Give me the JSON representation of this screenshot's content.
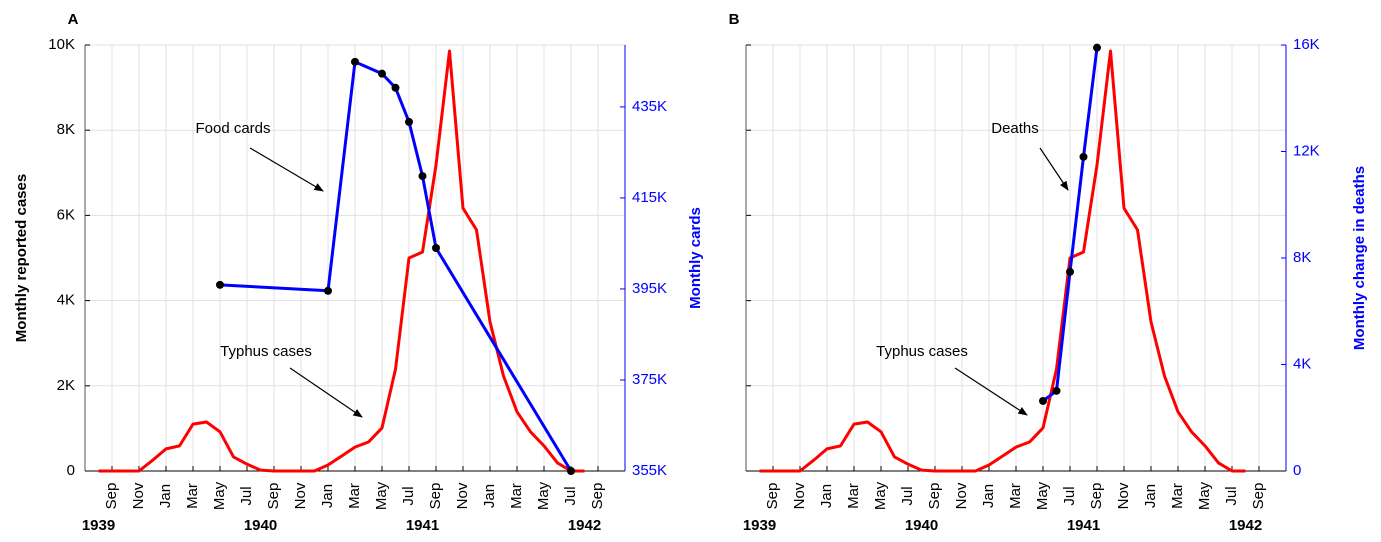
{
  "chart_data": [
    {
      "type": "line",
      "label": "A",
      "y_label": "Monthly reported cases",
      "y2_label": "Monthly cards",
      "y2_color": "#0000ff",
      "xlim": [
        "1939-07",
        "1942-11"
      ],
      "xticks": [
        {
          "value": "1939-09",
          "label": "Sep"
        },
        {
          "value": "1939-11",
          "label": "Nov"
        },
        {
          "value": "1940-01",
          "label": "Jan"
        },
        {
          "value": "1940-03",
          "label": "Mar"
        },
        {
          "value": "1940-05",
          "label": "May"
        },
        {
          "value": "1940-07",
          "label": "Jul"
        },
        {
          "value": "1940-09",
          "label": "Sep"
        },
        {
          "value": "1940-11",
          "label": "Nov"
        },
        {
          "value": "1941-01",
          "label": "Jan"
        },
        {
          "value": "1941-03",
          "label": "Mar"
        },
        {
          "value": "1941-05",
          "label": "May"
        },
        {
          "value": "1941-07",
          "label": "Jul"
        },
        {
          "value": "1941-09",
          "label": "Sep"
        },
        {
          "value": "1941-11",
          "label": "Nov"
        },
        {
          "value": "1942-01",
          "label": "Jan"
        },
        {
          "value": "1942-03",
          "label": "Mar"
        },
        {
          "value": "1942-05",
          "label": "May"
        },
        {
          "value": "1942-07",
          "label": "Jul"
        },
        {
          "value": "1942-09",
          "label": "Sep"
        }
      ],
      "year_labels": [
        "1939",
        "1940",
        "1941",
        "1942"
      ],
      "ylim": [
        0,
        10000
      ],
      "yticks": [
        0,
        {
          "value": 2000,
          "label": "2K"
        },
        {
          "value": 4000,
          "label": "4K"
        },
        {
          "value": 6000,
          "label": "6K"
        },
        {
          "value": 8000,
          "label": "8K"
        },
        {
          "value": 10000,
          "label": "10K"
        }
      ],
      "ytick_labels": true,
      "y2lim": [
        355000,
        448600
      ],
      "y2ticks": [
        {
          "value": 355000,
          "label": "355K"
        },
        {
          "value": 375000,
          "label": "375K"
        },
        {
          "value": 395000,
          "label": "395K"
        },
        {
          "value": 415000,
          "label": "415K"
        },
        {
          "value": 435000,
          "label": "435K"
        }
      ],
      "grid": true,
      "series": [
        {
          "name": "Typhus cases",
          "color": "#ff0000",
          "markers": false,
          "x": [
            "1939-08",
            "1939-09",
            "1939-10",
            "1939-11",
            "1939-12",
            "1940-01",
            "1940-02",
            "1940-03",
            "1940-04",
            "1940-05",
            "1940-06",
            "1940-07",
            "1940-08",
            "1940-09",
            "1940-10",
            "1940-11",
            "1940-12",
            "1941-01",
            "1941-02",
            "1941-03",
            "1941-04",
            "1941-05",
            "1941-06",
            "1941-07",
            "1941-08",
            "1941-09",
            "1941-10",
            "1941-11",
            "1941-12",
            "1942-01",
            "1942-02",
            "1942-03",
            "1942-04",
            "1942-05",
            "1942-06",
            "1942-07",
            "1942-08"
          ],
          "values": [
            0,
            0,
            0,
            0,
            250,
            520,
            590,
            1100,
            1150,
            920,
            330,
            160,
            20,
            0,
            0,
            0,
            0,
            140,
            350,
            560,
            680,
            1010,
            2390,
            5000,
            5140,
            7180,
            9860,
            6170,
            5660,
            3500,
            2230,
            1390,
            920,
            590,
            190,
            0,
            0
          ]
        },
        {
          "name": "Food cards",
          "color": "#0000ff",
          "axis": "y2",
          "markers": true,
          "x": [
            "1940-05",
            "1941-01",
            "1941-03",
            "1941-05",
            "1941-06",
            "1941-07",
            "1941-08",
            "1941-09",
            "1942-07"
          ],
          "values": [
            395900,
            394600,
            444900,
            442300,
            439200,
            431700,
            419800,
            404000,
            355000
          ]
        }
      ]
    },
    {
      "type": "line",
      "label": "B",
      "y2_label": "Monthly change in deaths",
      "y2_color": "#0000ff",
      "xlim": [
        "1939-07",
        "1942-11"
      ],
      "xticks": [
        {
          "value": "1939-09",
          "label": "Sep"
        },
        {
          "value": "1939-11",
          "label": "Nov"
        },
        {
          "value": "1940-01",
          "label": "Jan"
        },
        {
          "value": "1940-03",
          "label": "Mar"
        },
        {
          "value": "1940-05",
          "label": "May"
        },
        {
          "value": "1940-07",
          "label": "Jul"
        },
        {
          "value": "1940-09",
          "label": "Sep"
        },
        {
          "value": "1940-11",
          "label": "Nov"
        },
        {
          "value": "1941-01",
          "label": "Jan"
        },
        {
          "value": "1941-03",
          "label": "Mar"
        },
        {
          "value": "1941-05",
          "label": "May"
        },
        {
          "value": "1941-07",
          "label": "Jul"
        },
        {
          "value": "1941-09",
          "label": "Sep"
        },
        {
          "value": "1941-11",
          "label": "Nov"
        },
        {
          "value": "1942-01",
          "label": "Jan"
        },
        {
          "value": "1942-03",
          "label": "Mar"
        },
        {
          "value": "1942-05",
          "label": "May"
        },
        {
          "value": "1942-07",
          "label": "Jul"
        },
        {
          "value": "1942-09",
          "label": "Sep"
        }
      ],
      "year_labels": [
        "1939",
        "1940",
        "1941",
        "1942"
      ],
      "ylim": [
        0,
        10000
      ],
      "yticks": [
        0,
        2000,
        4000,
        6000,
        8000,
        10000
      ],
      "ytick_labels": false,
      "y2lim": [
        0,
        16000
      ],
      "y2ticks": [
        0,
        {
          "value": 4000,
          "label": "4K"
        },
        {
          "value": 8000,
          "label": "8K"
        },
        {
          "value": 12000,
          "label": "12K"
        },
        {
          "value": 16000,
          "label": "16K"
        }
      ],
      "grid": true,
      "series": [
        {
          "name": "Typhus cases",
          "color": "#ff0000",
          "markers": false,
          "x": [
            "1939-08",
            "1939-09",
            "1939-10",
            "1939-11",
            "1939-12",
            "1940-01",
            "1940-02",
            "1940-03",
            "1940-04",
            "1940-05",
            "1940-06",
            "1940-07",
            "1940-08",
            "1940-09",
            "1940-10",
            "1940-11",
            "1940-12",
            "1941-01",
            "1941-02",
            "1941-03",
            "1941-04",
            "1941-05",
            "1941-06",
            "1941-07",
            "1941-08",
            "1941-09",
            "1941-10",
            "1941-11",
            "1941-12",
            "1942-01",
            "1942-02",
            "1942-03",
            "1942-04",
            "1942-05",
            "1942-06",
            "1942-07",
            "1942-08"
          ],
          "values": [
            0,
            0,
            0,
            0,
            250,
            520,
            590,
            1100,
            1150,
            920,
            330,
            160,
            20,
            0,
            0,
            0,
            0,
            140,
            350,
            560,
            680,
            1010,
            2390,
            5000,
            5140,
            7180,
            9860,
            6170,
            5660,
            3500,
            2230,
            1390,
            920,
            590,
            190,
            0,
            0
          ]
        },
        {
          "name": "Deaths",
          "color": "#0000ff",
          "axis": "y2",
          "markers": true,
          "x": [
            "1941-05",
            "1941-06",
            "1941-07",
            "1941-08",
            "1941-09"
          ],
          "values": [
            2630,
            3010,
            7480,
            11800,
            15900
          ]
        }
      ]
    }
  ]
}
